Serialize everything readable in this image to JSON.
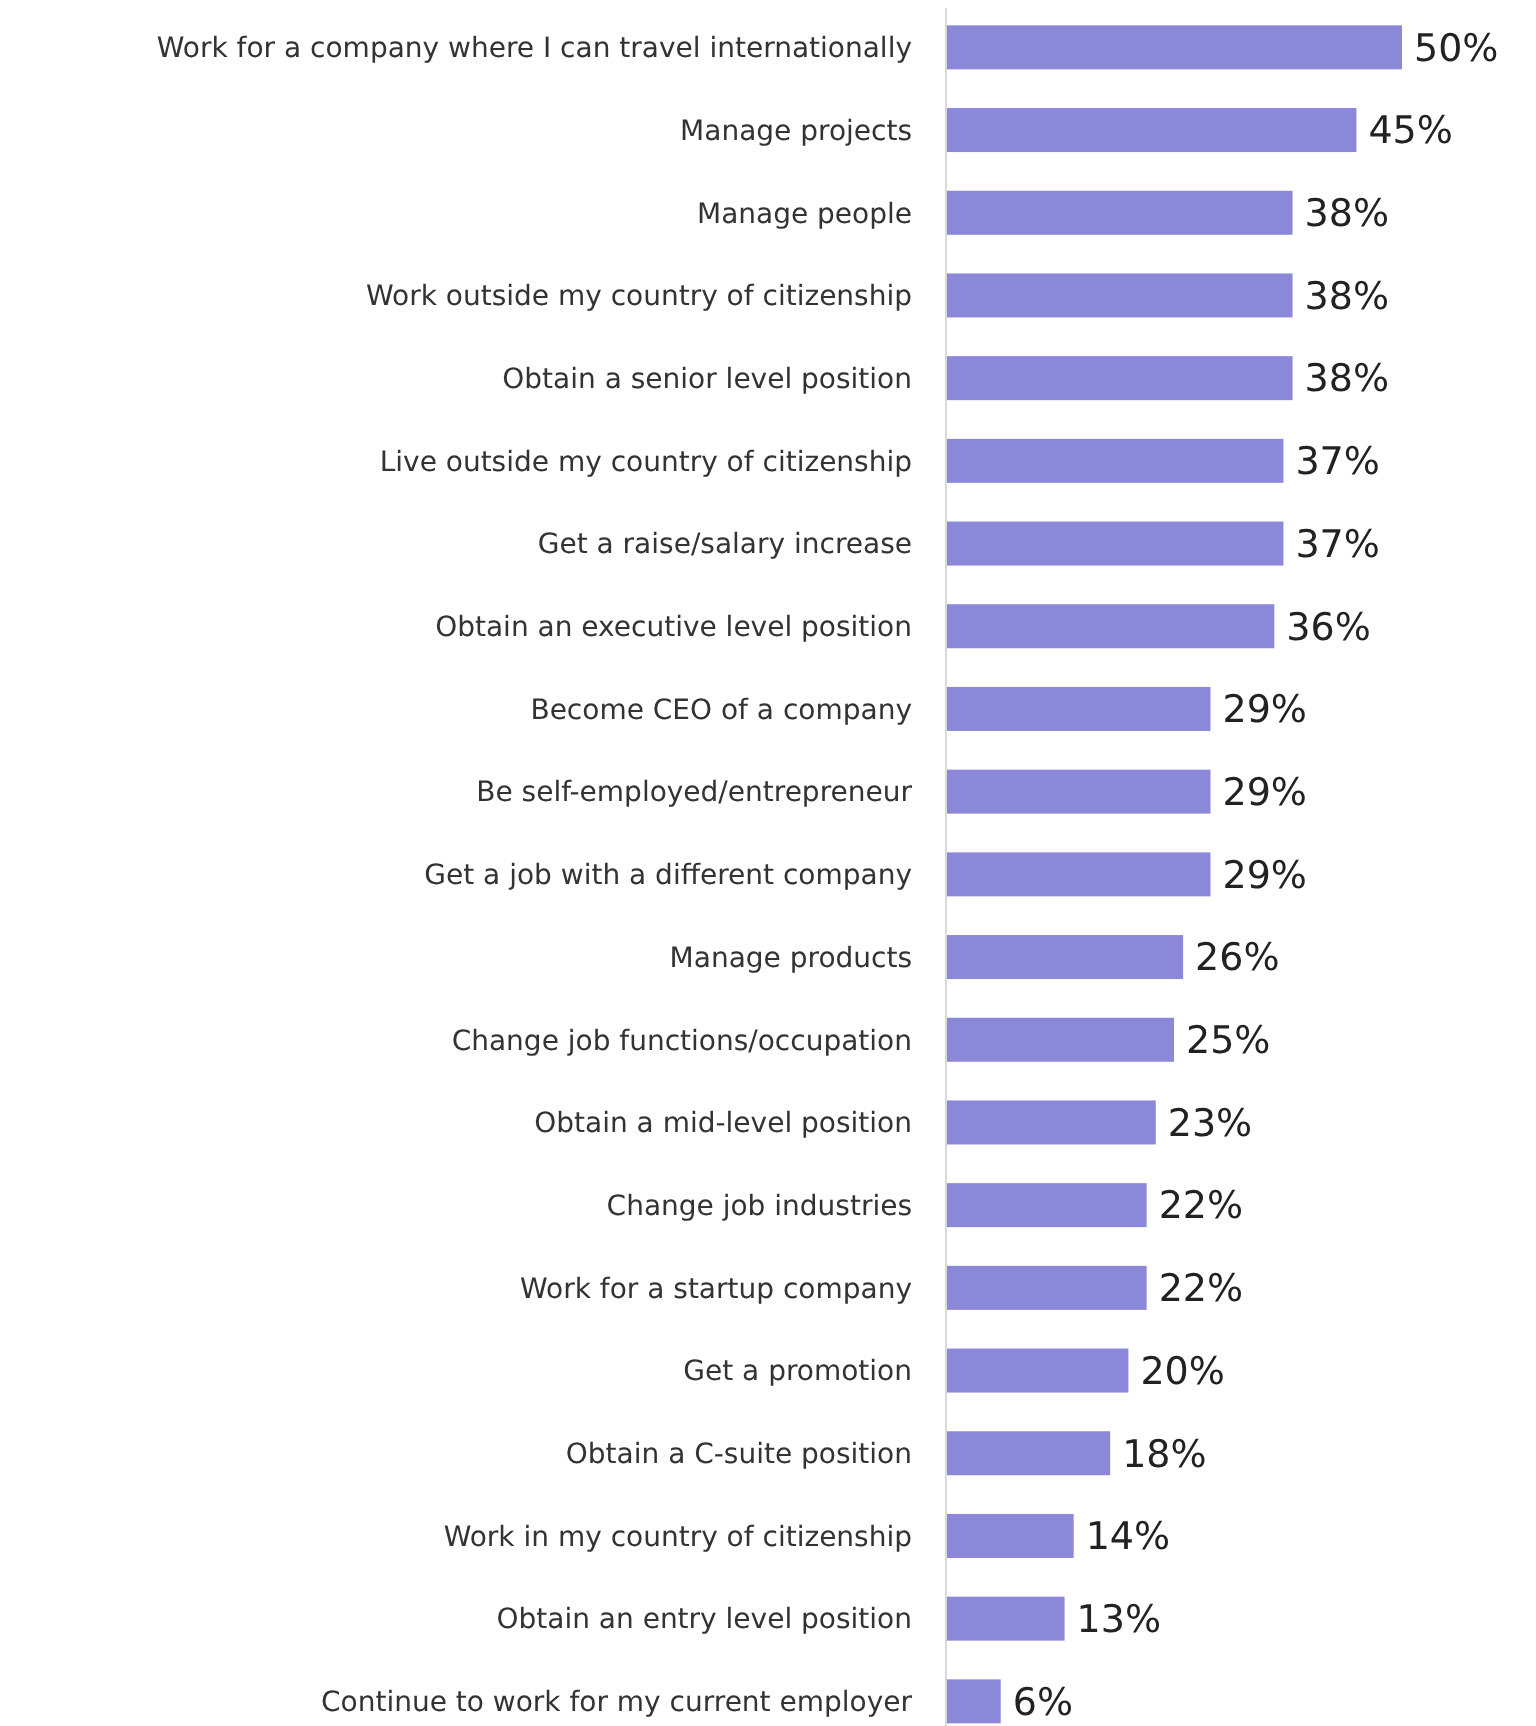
{
  "chart_data": {
    "type": "bar",
    "orientation": "horizontal",
    "categories": [
      "Work for a company where I can travel internationally",
      "Manage projects",
      "Manage people",
      "Work outside my country of citizenship",
      "Obtain a senior level position",
      "Live outside my country of citizenship",
      "Get a raise/salary increase",
      "Obtain an executive level position",
      "Become CEO of a company",
      "Be self-employed/entrepreneur",
      "Get a job with a different company",
      "Manage products",
      "Change job functions/occupation",
      "Obtain a mid-level position",
      "Change job industries",
      "Work for a startup company",
      "Get a promotion",
      "Obtain a C-suite position",
      "Work in my country of citizenship",
      "Obtain an entry level position",
      "Continue to work for my current employer"
    ],
    "values": [
      50,
      45,
      38,
      38,
      38,
      37,
      37,
      36,
      29,
      29,
      29,
      26,
      25,
      23,
      22,
      22,
      20,
      18,
      14,
      13,
      6
    ],
    "value_labels": [
      "50%",
      "45%",
      "38%",
      "38%",
      "38%",
      "37%",
      "37%",
      "36%",
      "29%",
      "29%",
      "29%",
      "26%",
      "25%",
      "23%",
      "22%",
      "22%",
      "20%",
      "18%",
      "14%",
      "13%",
      "6%"
    ],
    "color": "#8b87d9"
  }
}
